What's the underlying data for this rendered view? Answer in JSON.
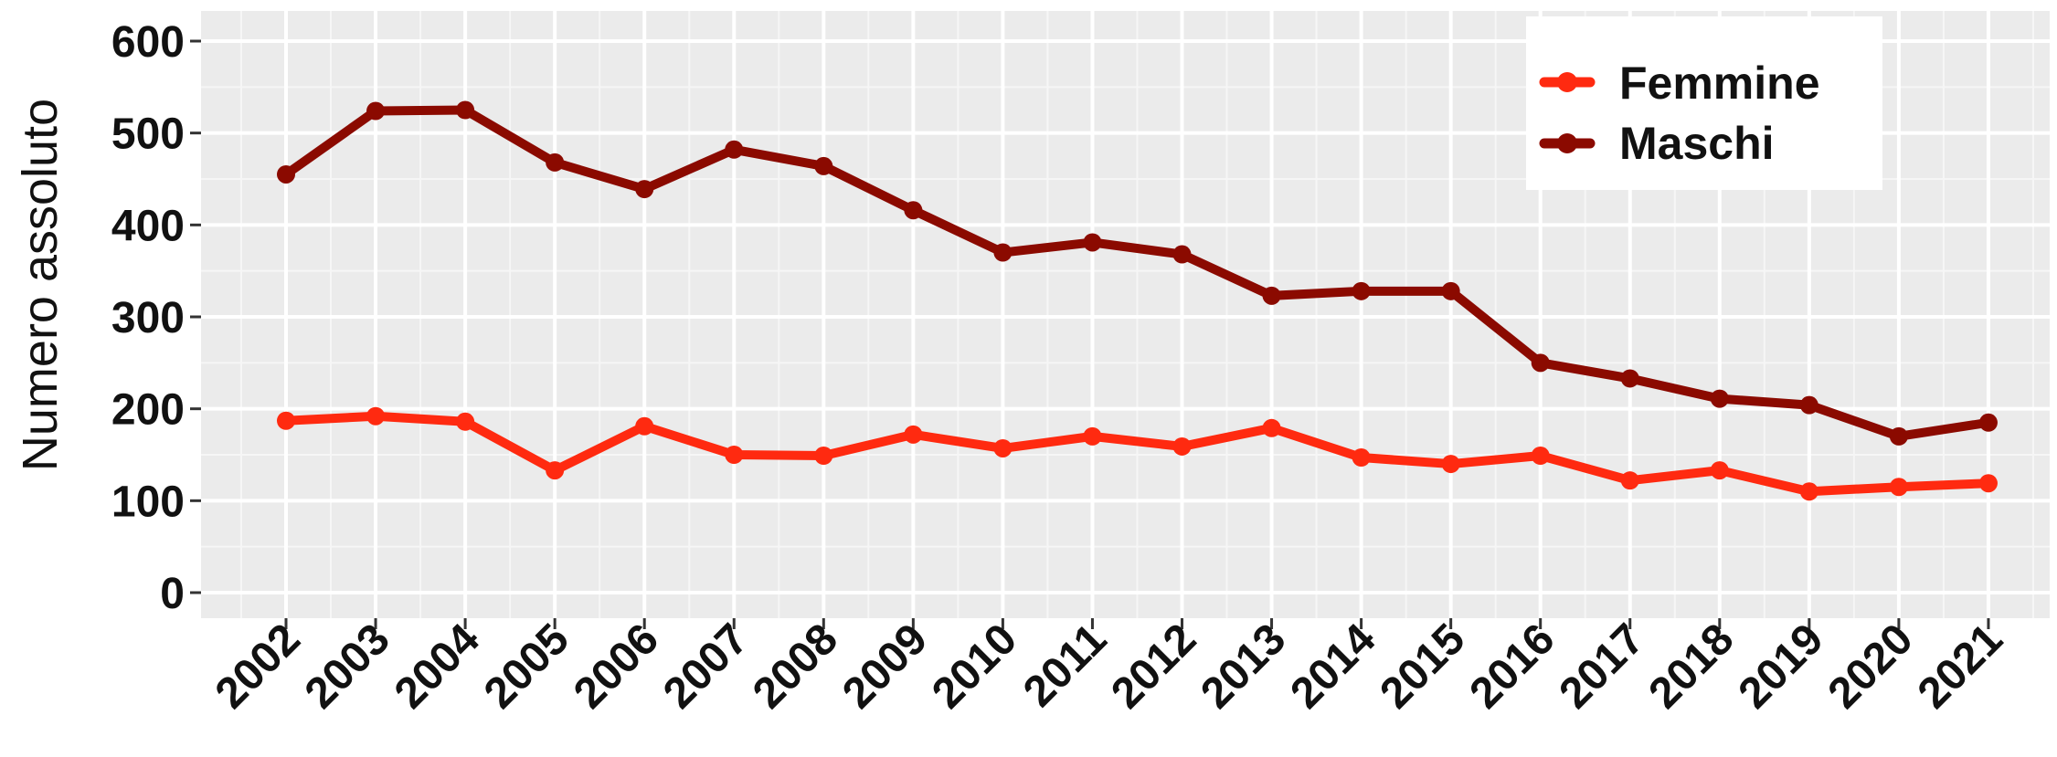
{
  "chart_data": {
    "type": "line",
    "title": "",
    "xlabel": "",
    "ylabel": "Numero assoluto",
    "x": [
      "2002",
      "2003",
      "2004",
      "2005",
      "2006",
      "2007",
      "2008",
      "2009",
      "2010",
      "2011",
      "2012",
      "2013",
      "2014",
      "2015",
      "2016",
      "2017",
      "2018",
      "2019",
      "2020",
      "2021"
    ],
    "ylim": [
      0,
      600
    ],
    "yticks": [
      "0",
      "100",
      "200",
      "300",
      "400",
      "500",
      "600"
    ],
    "grid": true,
    "legend_position": "top-right",
    "series": [
      {
        "name": "Femmine",
        "color": "#ff2a10",
        "values": [
          187,
          192,
          186,
          133,
          181,
          150,
          149,
          172,
          157,
          170,
          159,
          179,
          147,
          140,
          149,
          122,
          133,
          110,
          115,
          119
        ]
      },
      {
        "name": "Maschi",
        "color": "#8b0a00",
        "values": [
          455,
          524,
          525,
          468,
          439,
          482,
          464,
          416,
          370,
          381,
          368,
          323,
          328,
          328,
          250,
          233,
          211,
          204,
          170,
          185
        ]
      }
    ]
  }
}
